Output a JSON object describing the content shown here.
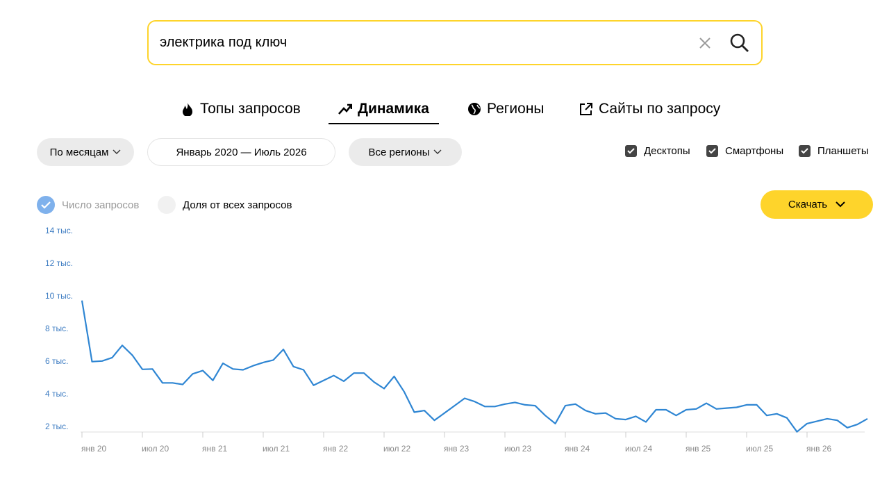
{
  "search": {
    "query": "электрика под ключ"
  },
  "tabs": [
    "Топы запросов",
    "Динамика",
    "Регионы",
    "Сайты по запросу"
  ],
  "active_tab": 1,
  "filters": {
    "period_type": "По месяцам",
    "date_range": "Январь 2020 — Июль 2026",
    "region": "Все регионы"
  },
  "devices": [
    "Десктопы",
    "Смартфоны",
    "Планшеты"
  ],
  "metrics": [
    "Число запросов",
    "Доля от всех запросов"
  ],
  "active_metric": 0,
  "download": "Скачать",
  "chart_data": {
    "type": "line",
    "categories": [
      "янв 20",
      null,
      null,
      null,
      null,
      null,
      "июл 20",
      null,
      null,
      null,
      null,
      null,
      "янв 21",
      null,
      null,
      null,
      null,
      null,
      "июл 21",
      null,
      null,
      null,
      null,
      null,
      "янв 22",
      null,
      null,
      null,
      null,
      null,
      "июл 22",
      null,
      null,
      null,
      null,
      null,
      "янв 23",
      null,
      null,
      null,
      null,
      null,
      "июл 23",
      null,
      null,
      null,
      null,
      null,
      "янв 24",
      null,
      null,
      null,
      null,
      null,
      "июл 24",
      null,
      null,
      null,
      null,
      null,
      "янв 25",
      null,
      null,
      null,
      null,
      null,
      "июл 25",
      null,
      null,
      null,
      null,
      null,
      "янв 26",
      null,
      null,
      null,
      null,
      null,
      null
    ],
    "values": [
      9750,
      6000,
      6040,
      6250,
      7000,
      6400,
      5530,
      5550,
      4700,
      4700,
      4600,
      5250,
      5450,
      4850,
      5900,
      5550,
      5500,
      5750,
      5950,
      6100,
      6750,
      5700,
      5500,
      4550,
      4850,
      5150,
      4800,
      5300,
      5300,
      4750,
      4350,
      5100,
      4150,
      2900,
      3000,
      2400,
      2850,
      3300,
      3750,
      3550,
      3250,
      3250,
      3400,
      3500,
      3350,
      3300,
      2700,
      2200,
      3300,
      3400,
      3000,
      2800,
      2850,
      2500,
      2450,
      2650,
      2300,
      3050,
      3050,
      2700,
      3050,
      3100,
      3450,
      3100,
      3150,
      3200,
      3350,
      3350,
      2700,
      2800,
      2550,
      1700,
      2200,
      2350,
      2500,
      2400,
      1950,
      2150,
      2500
    ],
    "color": "#2f86d3",
    "ylim": [
      1600,
      14000
    ],
    "yticks": [
      {
        "value": 2000,
        "label": "2 тыс."
      },
      {
        "value": 4000,
        "label": "4 тыс."
      },
      {
        "value": 6000,
        "label": "6 тыс."
      },
      {
        "value": 8000,
        "label": "8 тыс."
      },
      {
        "value": 10000,
        "label": "10 тыс."
      },
      {
        "value": 12000,
        "label": "12 тыс."
      },
      {
        "value": 14000,
        "label": "14 тыс."
      }
    ],
    "grid": false
  }
}
